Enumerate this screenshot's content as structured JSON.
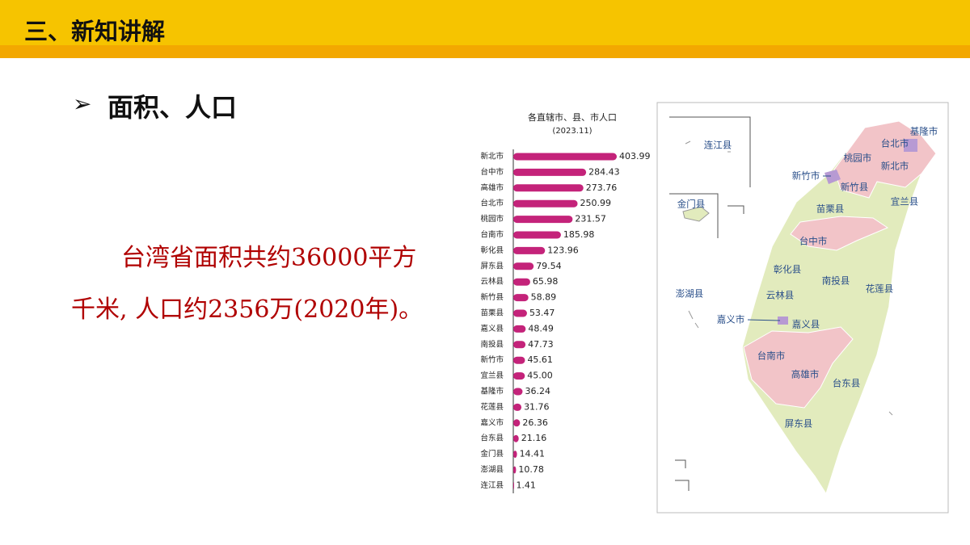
{
  "header": {
    "title": "三、新知讲解"
  },
  "section": {
    "bullet": "➢",
    "heading": "面积、人口"
  },
  "body": {
    "lines": [
      "台湾省面积共约36000平方",
      "千米, 人口约2356万(2020年)。"
    ]
  },
  "chart_data": {
    "type": "bar",
    "title": "各直辖市、县、市人口",
    "subtitle": "(2023.11)",
    "orientation": "horizontal",
    "color": "#c4237a",
    "categories": [
      "新北市",
      "台中市",
      "高雄市",
      "台北市",
      "桃园市",
      "台南市",
      "彰化县",
      "屏东县",
      "云林县",
      "新竹县",
      "苗栗县",
      "嘉义县",
      "南投县",
      "新竹市",
      "宜兰县",
      "基隆市",
      "花莲县",
      "嘉义市",
      "台东县",
      "金门县",
      "澎湖县",
      "连江县"
    ],
    "values": [
      403.99,
      284.43,
      273.76,
      250.99,
      231.57,
      185.98,
      123.96,
      79.54,
      65.98,
      58.89,
      53.47,
      48.49,
      47.73,
      45.61,
      45,
      36.24,
      31.76,
      26.36,
      21.16,
      14.41,
      10.78,
      1.41
    ],
    "value_labels": [
      "403.99",
      "284.43",
      "273.76",
      "250.99",
      "231.57",
      "185.98",
      "123.96",
      "79.54",
      "65.98",
      "58.89",
      "53.47",
      "48.49",
      "47.73",
      "45.61",
      "45.00",
      "36.24",
      "31.76",
      "26.36",
      "21.16",
      "14.41",
      "10.78",
      "1.41"
    ]
  },
  "map": {
    "labels": [
      "连江县",
      "金门县",
      "澎湖县",
      "基隆市",
      "台北市",
      "桃园市",
      "新北市",
      "新竹市",
      "新竹县",
      "宜兰县",
      "苗栗县",
      "台中市",
      "彰化县",
      "南投县",
      "云林县",
      "花莲县",
      "嘉义市",
      "嘉义县",
      "台南市",
      "高雄市",
      "台东县",
      "屏东县"
    ]
  }
}
